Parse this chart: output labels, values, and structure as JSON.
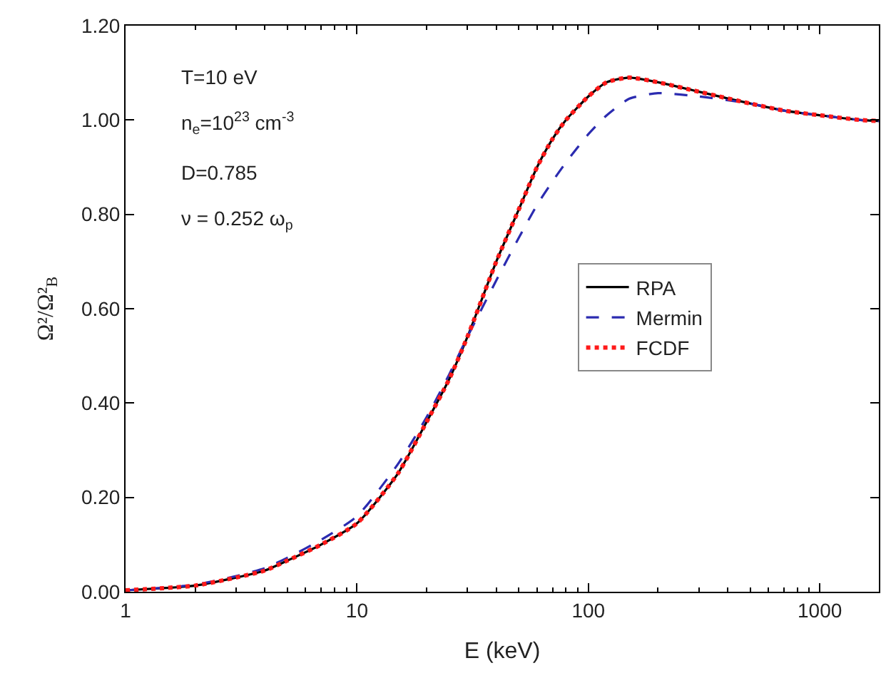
{
  "chart_data": {
    "type": "line",
    "xlabel": "E (keV)",
    "ylabel": "Ω²/Ω²$_{B}$",
    "log": "x",
    "xlim": [
      1,
      1800
    ],
    "xticks": [
      1,
      10,
      100,
      1000
    ],
    "ylim": [
      0,
      1.2
    ],
    "yticks": [
      {
        "value": 0,
        "label": "0.00"
      },
      {
        "value": 0.2,
        "label": "0.20"
      },
      {
        "value": 0.4,
        "label": "0.40"
      },
      {
        "value": 0.6,
        "label": "0.60"
      },
      {
        "value": 0.8,
        "label": "0.80"
      },
      {
        "value": 1.0,
        "label": "1.00"
      },
      {
        "value": 1.2,
        "label": "1.20"
      }
    ],
    "legend": "right",
    "marker": "none",
    "annotations": [
      "T=10 eV",
      "n$_{e}$=10$^{23}$ cm$^{-3}$",
      "D=0.785",
      "ν = 0.252 ω$_{p}$"
    ],
    "x": [
      1,
      1.5,
      2,
      3,
      4,
      5,
      7,
      10,
      15,
      20,
      25,
      30,
      40,
      50,
      60,
      70,
      80,
      100,
      120,
      150,
      200,
      300,
      500,
      700,
      1000,
      1500,
      1800
    ],
    "series": [
      {
        "name": "RPA",
        "color": "#000000",
        "line_style": "solid",
        "values": [
          0.003,
          0.008,
          0.013,
          0.03,
          0.045,
          0.066,
          0.1,
          0.145,
          0.25,
          0.36,
          0.45,
          0.54,
          0.7,
          0.81,
          0.9,
          0.96,
          1.0,
          1.05,
          1.08,
          1.09,
          1.08,
          1.06,
          1.035,
          1.02,
          1.01,
          1.0,
          0.998
        ]
      },
      {
        "name": "Mermin",
        "color": "#2b2bb0",
        "line_style": "dashed",
        "values": [
          0.003,
          0.009,
          0.015,
          0.033,
          0.05,
          0.072,
          0.11,
          0.16,
          0.27,
          0.37,
          0.46,
          0.54,
          0.66,
          0.75,
          0.82,
          0.87,
          0.91,
          0.97,
          1.01,
          1.045,
          1.057,
          1.05,
          1.035,
          1.02,
          1.01,
          1.0,
          0.998
        ]
      },
      {
        "name": "FCDF",
        "color": "#ff1a1a",
        "line_style": "dotted",
        "values": [
          0.003,
          0.008,
          0.013,
          0.03,
          0.045,
          0.066,
          0.1,
          0.145,
          0.25,
          0.36,
          0.45,
          0.54,
          0.7,
          0.81,
          0.9,
          0.96,
          1.0,
          1.05,
          1.08,
          1.09,
          1.08,
          1.06,
          1.035,
          1.02,
          1.01,
          1.0,
          0.998
        ]
      }
    ]
  }
}
